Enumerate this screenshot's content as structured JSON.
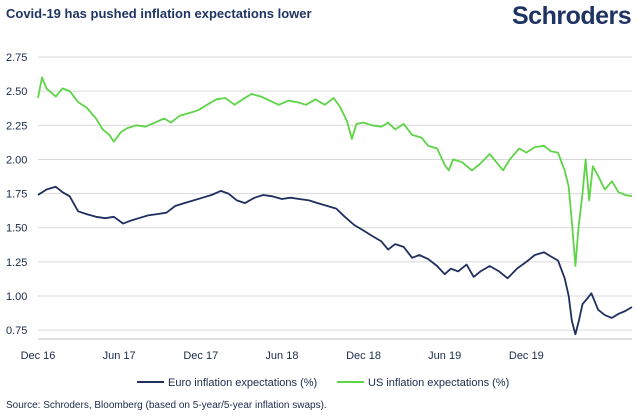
{
  "header": {
    "title": "Covid-19 has pushed inflation expectations lower",
    "brand": "Schroders"
  },
  "footer": {
    "source": "Source: Schroders, Bloomberg (based on 5-year/5-year inflation swaps)."
  },
  "colors": {
    "euro": "#1f2f5e",
    "us": "#5ed447",
    "grid": "#d9d9d9",
    "text": "#1b2a4a"
  },
  "chart_data": {
    "type": "line",
    "title": "Covid-19 has pushed inflation expectations lower",
    "xlabel": "",
    "ylabel": "",
    "ylim": [
      0.7,
      2.75
    ],
    "xlim": [
      "2016-12-01",
      "2020-07-25"
    ],
    "yticks": [
      "2.75",
      "2.50",
      "2.25",
      "2.00",
      "1.75",
      "1.50",
      "1.25",
      "1.00",
      "0.75"
    ],
    "xticks": [
      {
        "label": "Dec 16",
        "date": "2016-12-01"
      },
      {
        "label": "Jun 17",
        "date": "2017-06-01"
      },
      {
        "label": "Dec 17",
        "date": "2017-12-01"
      },
      {
        "label": "Jun 18",
        "date": "2018-06-01"
      },
      {
        "label": "Dec 18",
        "date": "2018-12-01"
      },
      {
        "label": "Jun 19",
        "date": "2019-06-01"
      },
      {
        "label": "Dec 19",
        "date": "2019-12-01"
      }
    ],
    "grid": true,
    "legend_position": "bottom",
    "series": [
      {
        "name": "Euro inflation expectations (%)",
        "color": "#1f2f5e",
        "points": [
          [
            "2016-12-01",
            1.74
          ],
          [
            "2016-12-20",
            1.78
          ],
          [
            "2017-01-10",
            1.8
          ],
          [
            "2017-01-25",
            1.76
          ],
          [
            "2017-02-10",
            1.73
          ],
          [
            "2017-03-01",
            1.62
          ],
          [
            "2017-03-20",
            1.6
          ],
          [
            "2017-04-10",
            1.58
          ],
          [
            "2017-05-01",
            1.57
          ],
          [
            "2017-05-20",
            1.58
          ],
          [
            "2017-06-10",
            1.53
          ],
          [
            "2017-06-25",
            1.55
          ],
          [
            "2017-07-15",
            1.57
          ],
          [
            "2017-08-05",
            1.59
          ],
          [
            "2017-08-25",
            1.6
          ],
          [
            "2017-09-15",
            1.61
          ],
          [
            "2017-10-05",
            1.66
          ],
          [
            "2017-10-25",
            1.68
          ],
          [
            "2017-11-15",
            1.7
          ],
          [
            "2017-12-05",
            1.72
          ],
          [
            "2017-12-25",
            1.74
          ],
          [
            "2018-01-15",
            1.77
          ],
          [
            "2018-02-01",
            1.75
          ],
          [
            "2018-02-20",
            1.7
          ],
          [
            "2018-03-10",
            1.68
          ],
          [
            "2018-04-01",
            1.72
          ],
          [
            "2018-04-20",
            1.74
          ],
          [
            "2018-05-10",
            1.73
          ],
          [
            "2018-06-01",
            1.71
          ],
          [
            "2018-06-20",
            1.72
          ],
          [
            "2018-07-10",
            1.71
          ],
          [
            "2018-08-01",
            1.7
          ],
          [
            "2018-08-20",
            1.68
          ],
          [
            "2018-09-10",
            1.66
          ],
          [
            "2018-10-01",
            1.64
          ],
          [
            "2018-10-20",
            1.58
          ],
          [
            "2018-11-10",
            1.52
          ],
          [
            "2018-12-01",
            1.48
          ],
          [
            "2018-12-20",
            1.44
          ],
          [
            "2019-01-10",
            1.4
          ],
          [
            "2019-01-25",
            1.34
          ],
          [
            "2019-02-10",
            1.38
          ],
          [
            "2019-03-01",
            1.36
          ],
          [
            "2019-03-20",
            1.28
          ],
          [
            "2019-04-05",
            1.3
          ],
          [
            "2019-04-25",
            1.27
          ],
          [
            "2019-05-15",
            1.22
          ],
          [
            "2019-06-01",
            1.16
          ],
          [
            "2019-06-15",
            1.2
          ],
          [
            "2019-07-01",
            1.18
          ],
          [
            "2019-07-20",
            1.23
          ],
          [
            "2019-08-05",
            1.14
          ],
          [
            "2019-08-20",
            1.18
          ],
          [
            "2019-09-10",
            1.22
          ],
          [
            "2019-10-01",
            1.18
          ],
          [
            "2019-10-20",
            1.13
          ],
          [
            "2019-11-10",
            1.2
          ],
          [
            "2019-12-01",
            1.25
          ],
          [
            "2019-12-20",
            1.3
          ],
          [
            "2020-01-10",
            1.32
          ],
          [
            "2020-01-25",
            1.29
          ],
          [
            "2020-02-10",
            1.26
          ],
          [
            "2020-02-25",
            1.13
          ],
          [
            "2020-03-05",
            1.0
          ],
          [
            "2020-03-12",
            0.82
          ],
          [
            "2020-03-20",
            0.72
          ],
          [
            "2020-03-28",
            0.82
          ],
          [
            "2020-04-05",
            0.94
          ],
          [
            "2020-04-15",
            0.98
          ],
          [
            "2020-04-25",
            1.02
          ],
          [
            "2020-05-10",
            0.9
          ],
          [
            "2020-05-25",
            0.86
          ],
          [
            "2020-06-10",
            0.84
          ],
          [
            "2020-06-25",
            0.87
          ],
          [
            "2020-07-10",
            0.89
          ],
          [
            "2020-07-25",
            0.92
          ]
        ]
      },
      {
        "name": "US inflation expectations (%)",
        "color": "#5ed447",
        "points": [
          [
            "2016-12-01",
            2.45
          ],
          [
            "2016-12-10",
            2.6
          ],
          [
            "2016-12-20",
            2.52
          ],
          [
            "2017-01-10",
            2.46
          ],
          [
            "2017-01-25",
            2.52
          ],
          [
            "2017-02-10",
            2.5
          ],
          [
            "2017-03-01",
            2.42
          ],
          [
            "2017-03-20",
            2.38
          ],
          [
            "2017-04-10",
            2.3
          ],
          [
            "2017-04-25",
            2.22
          ],
          [
            "2017-05-10",
            2.18
          ],
          [
            "2017-05-20",
            2.13
          ],
          [
            "2017-06-05",
            2.2
          ],
          [
            "2017-06-20",
            2.23
          ],
          [
            "2017-07-10",
            2.25
          ],
          [
            "2017-07-30",
            2.24
          ],
          [
            "2017-08-20",
            2.27
          ],
          [
            "2017-09-10",
            2.3
          ],
          [
            "2017-09-25",
            2.27
          ],
          [
            "2017-10-15",
            2.32
          ],
          [
            "2017-11-05",
            2.34
          ],
          [
            "2017-11-25",
            2.36
          ],
          [
            "2017-12-15",
            2.4
          ],
          [
            "2018-01-05",
            2.44
          ],
          [
            "2018-01-25",
            2.45
          ],
          [
            "2018-02-15",
            2.4
          ],
          [
            "2018-03-05",
            2.44
          ],
          [
            "2018-03-25",
            2.48
          ],
          [
            "2018-04-15",
            2.46
          ],
          [
            "2018-05-05",
            2.43
          ],
          [
            "2018-05-25",
            2.4
          ],
          [
            "2018-06-15",
            2.43
          ],
          [
            "2018-07-05",
            2.42
          ],
          [
            "2018-07-25",
            2.4
          ],
          [
            "2018-08-15",
            2.44
          ],
          [
            "2018-09-05",
            2.4
          ],
          [
            "2018-09-25",
            2.45
          ],
          [
            "2018-10-10",
            2.38
          ],
          [
            "2018-10-25",
            2.28
          ],
          [
            "2018-11-05",
            2.15
          ],
          [
            "2018-11-15",
            2.26
          ],
          [
            "2018-12-01",
            2.27
          ],
          [
            "2018-12-20",
            2.25
          ],
          [
            "2019-01-10",
            2.24
          ],
          [
            "2019-01-25",
            2.27
          ],
          [
            "2019-02-10",
            2.22
          ],
          [
            "2019-03-01",
            2.26
          ],
          [
            "2019-03-20",
            2.18
          ],
          [
            "2019-04-10",
            2.16
          ],
          [
            "2019-04-25",
            2.1
          ],
          [
            "2019-05-15",
            2.08
          ],
          [
            "2019-06-01",
            1.96
          ],
          [
            "2019-06-10",
            1.92
          ],
          [
            "2019-06-20",
            2.0
          ],
          [
            "2019-07-10",
            1.98
          ],
          [
            "2019-08-01",
            1.92
          ],
          [
            "2019-08-20",
            1.97
          ],
          [
            "2019-09-10",
            2.04
          ],
          [
            "2019-09-25",
            1.98
          ],
          [
            "2019-10-10",
            1.92
          ],
          [
            "2019-10-25",
            2.0
          ],
          [
            "2019-11-15",
            2.08
          ],
          [
            "2019-12-01",
            2.05
          ],
          [
            "2019-12-20",
            2.09
          ],
          [
            "2020-01-10",
            2.1
          ],
          [
            "2020-01-25",
            2.06
          ],
          [
            "2020-02-10",
            2.05
          ],
          [
            "2020-02-25",
            1.92
          ],
          [
            "2020-03-05",
            1.8
          ],
          [
            "2020-03-12",
            1.55
          ],
          [
            "2020-03-20",
            1.22
          ],
          [
            "2020-03-27",
            1.5
          ],
          [
            "2020-04-05",
            1.75
          ],
          [
            "2020-04-12",
            2.0
          ],
          [
            "2020-04-20",
            1.7
          ],
          [
            "2020-04-28",
            1.95
          ],
          [
            "2020-05-10",
            1.88
          ],
          [
            "2020-05-25",
            1.78
          ],
          [
            "2020-06-10",
            1.84
          ],
          [
            "2020-06-25",
            1.76
          ],
          [
            "2020-07-10",
            1.74
          ],
          [
            "2020-07-25",
            1.73
          ]
        ]
      }
    ]
  }
}
